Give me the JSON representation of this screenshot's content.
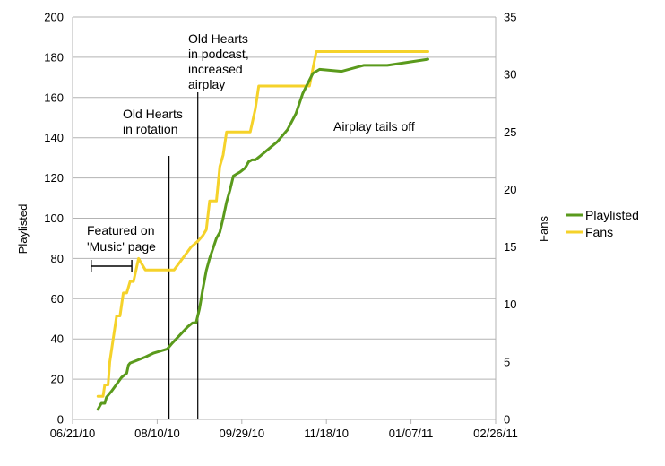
{
  "chart_data": {
    "type": "line",
    "y_label_left": "Playlisted",
    "y_label_right": "Fans",
    "x_tick_labels": [
      "06/21/10",
      "08/10/10",
      "09/29/10",
      "11/18/10",
      "01/07/11",
      "02/26/11"
    ],
    "x_ticks": [
      "2010-06-21",
      "2010-08-10",
      "2010-09-29",
      "2010-11-18",
      "2011-01-07",
      "2011-02-26"
    ],
    "xlim": [
      "2010-06-21",
      "2011-02-26"
    ],
    "ylim_left": [
      0,
      200
    ],
    "y_ticks_left": [
      0,
      20,
      40,
      60,
      80,
      100,
      120,
      140,
      160,
      180,
      200
    ],
    "ylim_right": [
      0,
      35
    ],
    "y_ticks_right": [
      0,
      5,
      10,
      15,
      20,
      25,
      30,
      35
    ],
    "grid": "horizontal",
    "legend_position": "right",
    "series": [
      {
        "name": "Playlisted",
        "axis": "left",
        "color": "#5a9a1c",
        "points": [
          [
            "2010-07-06",
            5
          ],
          [
            "2010-07-08",
            8
          ],
          [
            "2010-07-10",
            8
          ],
          [
            "2010-07-11",
            11
          ],
          [
            "2010-07-14",
            14
          ],
          [
            "2010-07-20",
            21
          ],
          [
            "2010-07-23",
            23
          ],
          [
            "2010-07-24",
            27
          ],
          [
            "2010-07-25",
            28
          ],
          [
            "2010-07-28",
            29
          ],
          [
            "2010-08-03",
            31
          ],
          [
            "2010-08-08",
            33
          ],
          [
            "2010-08-12",
            34
          ],
          [
            "2010-08-16",
            35
          ],
          [
            "2010-08-19",
            38
          ],
          [
            "2010-08-28",
            46
          ],
          [
            "2010-08-31",
            48
          ],
          [
            "2010-09-02",
            48
          ],
          [
            "2010-09-04",
            55
          ],
          [
            "2010-09-06",
            65
          ],
          [
            "2010-09-08",
            74
          ],
          [
            "2010-09-10",
            80
          ],
          [
            "2010-09-12",
            85
          ],
          [
            "2010-09-14",
            90
          ],
          [
            "2010-09-16",
            93
          ],
          [
            "2010-09-18",
            100
          ],
          [
            "2010-09-20",
            108
          ],
          [
            "2010-09-22",
            114
          ],
          [
            "2010-09-24",
            121
          ],
          [
            "2010-09-26",
            122
          ],
          [
            "2010-09-28",
            123
          ],
          [
            "2010-10-01",
            125
          ],
          [
            "2010-10-03",
            128
          ],
          [
            "2010-10-05",
            129
          ],
          [
            "2010-10-07",
            129
          ],
          [
            "2010-10-10",
            131
          ],
          [
            "2010-10-20",
            138
          ],
          [
            "2010-10-26",
            144
          ],
          [
            "2010-10-31",
            152
          ],
          [
            "2010-11-04",
            162
          ],
          [
            "2010-11-07",
            167
          ],
          [
            "2010-11-10",
            172
          ],
          [
            "2010-11-14",
            174
          ],
          [
            "2010-11-27",
            173
          ],
          [
            "2010-12-10",
            176
          ],
          [
            "2010-12-24",
            176
          ],
          [
            "2011-01-17",
            179
          ]
        ]
      },
      {
        "name": "Fans",
        "axis": "right",
        "color": "#f5d22a",
        "points": [
          [
            "2010-07-06",
            2
          ],
          [
            "2010-07-09",
            2
          ],
          [
            "2010-07-10",
            3
          ],
          [
            "2010-07-12",
            3
          ],
          [
            "2010-07-13",
            5
          ],
          [
            "2010-07-15",
            7
          ],
          [
            "2010-07-17",
            9
          ],
          [
            "2010-07-19",
            9
          ],
          [
            "2010-07-21",
            11
          ],
          [
            "2010-07-23",
            11
          ],
          [
            "2010-07-25",
            12
          ],
          [
            "2010-07-27",
            12
          ],
          [
            "2010-07-30",
            14
          ],
          [
            "2010-08-01",
            13.5
          ],
          [
            "2010-08-03",
            13
          ],
          [
            "2010-08-20",
            13
          ],
          [
            "2010-08-30",
            15
          ],
          [
            "2010-09-03",
            15.5
          ],
          [
            "2010-09-06",
            16
          ],
          [
            "2010-09-08",
            16.5
          ],
          [
            "2010-09-10",
            19
          ],
          [
            "2010-09-14",
            19
          ],
          [
            "2010-09-16",
            22
          ],
          [
            "2010-09-18",
            23
          ],
          [
            "2010-09-20",
            25
          ],
          [
            "2010-09-24",
            25
          ],
          [
            "2010-10-04",
            25
          ],
          [
            "2010-10-07",
            27
          ],
          [
            "2010-10-09",
            29
          ],
          [
            "2010-10-31",
            29
          ],
          [
            "2010-11-08",
            29
          ],
          [
            "2010-11-12",
            32
          ],
          [
            "2011-01-17",
            32
          ]
        ]
      }
    ],
    "annotations": [
      {
        "lines": [
          "Featured on",
          "'Music' page"
        ],
        "span": [
          "2010-07-02",
          "2010-07-26"
        ]
      },
      {
        "lines": [
          "Old Hearts",
          "in rotation"
        ],
        "line_at": "2010-08-17"
      },
      {
        "lines": [
          "Old Hearts",
          "in podcast,",
          "increased",
          "airplay"
        ],
        "line_at": "2010-09-03"
      },
      {
        "lines": [
          "Airplay tails off"
        ]
      }
    ]
  }
}
